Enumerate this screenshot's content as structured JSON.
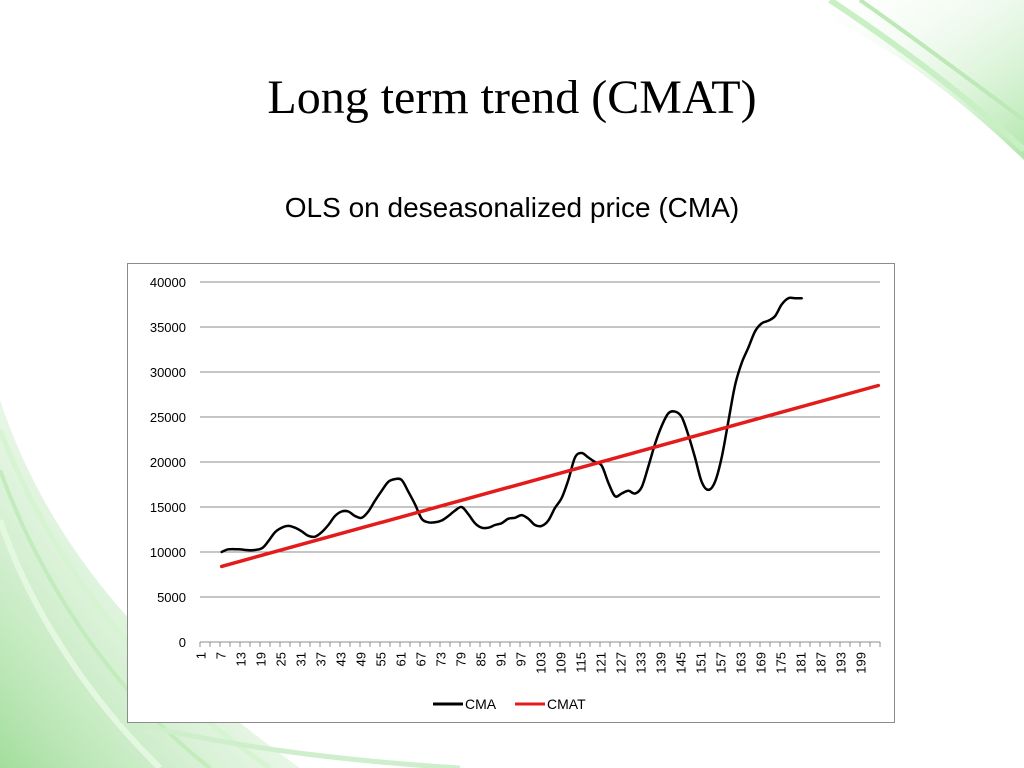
{
  "slide": {
    "title": "Long term trend (CMAT)",
    "accent_color": "#8fd98a"
  },
  "chart_data": {
    "type": "line",
    "title": "OLS on deseasonalized price (CMA)",
    "xlabel": "",
    "ylabel": "",
    "x_range": [
      1,
      204
    ],
    "x_tick_labels": [
      1,
      7,
      13,
      19,
      25,
      31,
      37,
      43,
      49,
      55,
      61,
      67,
      73,
      79,
      85,
      91,
      97,
      103,
      109,
      115,
      121,
      127,
      133,
      139,
      145,
      151,
      157,
      163,
      169,
      175,
      181,
      187,
      193,
      199
    ],
    "ylim": [
      0,
      40000
    ],
    "y_ticks": [
      0,
      5000,
      10000,
      15000,
      20000,
      25000,
      30000,
      35000,
      40000
    ],
    "grid": "horizontal",
    "legend_position": "bottom",
    "series": [
      {
        "name": "CMA",
        "color": "#000000",
        "x": [
          7,
          9,
          12,
          16,
          19,
          21,
          23,
          25,
          27,
          29,
          31,
          33,
          35,
          37,
          39,
          41,
          43,
          45,
          47,
          49,
          51,
          53,
          55,
          57,
          59,
          61,
          63,
          65,
          67,
          69,
          71,
          73,
          75,
          77,
          79,
          81,
          83,
          85,
          87,
          89,
          91,
          93,
          95,
          97,
          99,
          101,
          103,
          105,
          107,
          109,
          111,
          113,
          115,
          117,
          119,
          121,
          123,
          125,
          127,
          129,
          131,
          133,
          135,
          137,
          139,
          141,
          143,
          145,
          147,
          149,
          151,
          153,
          155,
          157,
          159,
          161,
          163,
          165,
          167,
          169,
          171,
          173,
          175,
          177,
          179,
          181
        ],
        "y": [
          10000,
          10300,
          10300,
          10200,
          10400,
          11200,
          12200,
          12700,
          12900,
          12700,
          12300,
          11800,
          11700,
          12200,
          13000,
          14000,
          14500,
          14500,
          14000,
          13800,
          14500,
          15700,
          16800,
          17800,
          18100,
          18000,
          16700,
          15300,
          13700,
          13300,
          13300,
          13500,
          14000,
          14600,
          15000,
          14200,
          13200,
          12700,
          12700,
          13000,
          13200,
          13700,
          13800,
          14100,
          13700,
          13000,
          12900,
          13500,
          14900,
          16000,
          18000,
          20500,
          21000,
          20500,
          20000,
          19600,
          17700,
          16200,
          16500,
          16800,
          16500,
          17200,
          19500,
          22000,
          24000,
          25400,
          25600,
          25000,
          23000,
          20500,
          17800,
          16900,
          17800,
          20500,
          24500,
          28500,
          31000,
          32700,
          34500,
          35400,
          35700,
          36200,
          37500,
          38200,
          38200,
          38200
        ]
      },
      {
        "name": "CMAT",
        "color": "#e31b1b",
        "x": [
          7,
          204
        ],
        "y": [
          8400,
          28500
        ]
      }
    ]
  }
}
